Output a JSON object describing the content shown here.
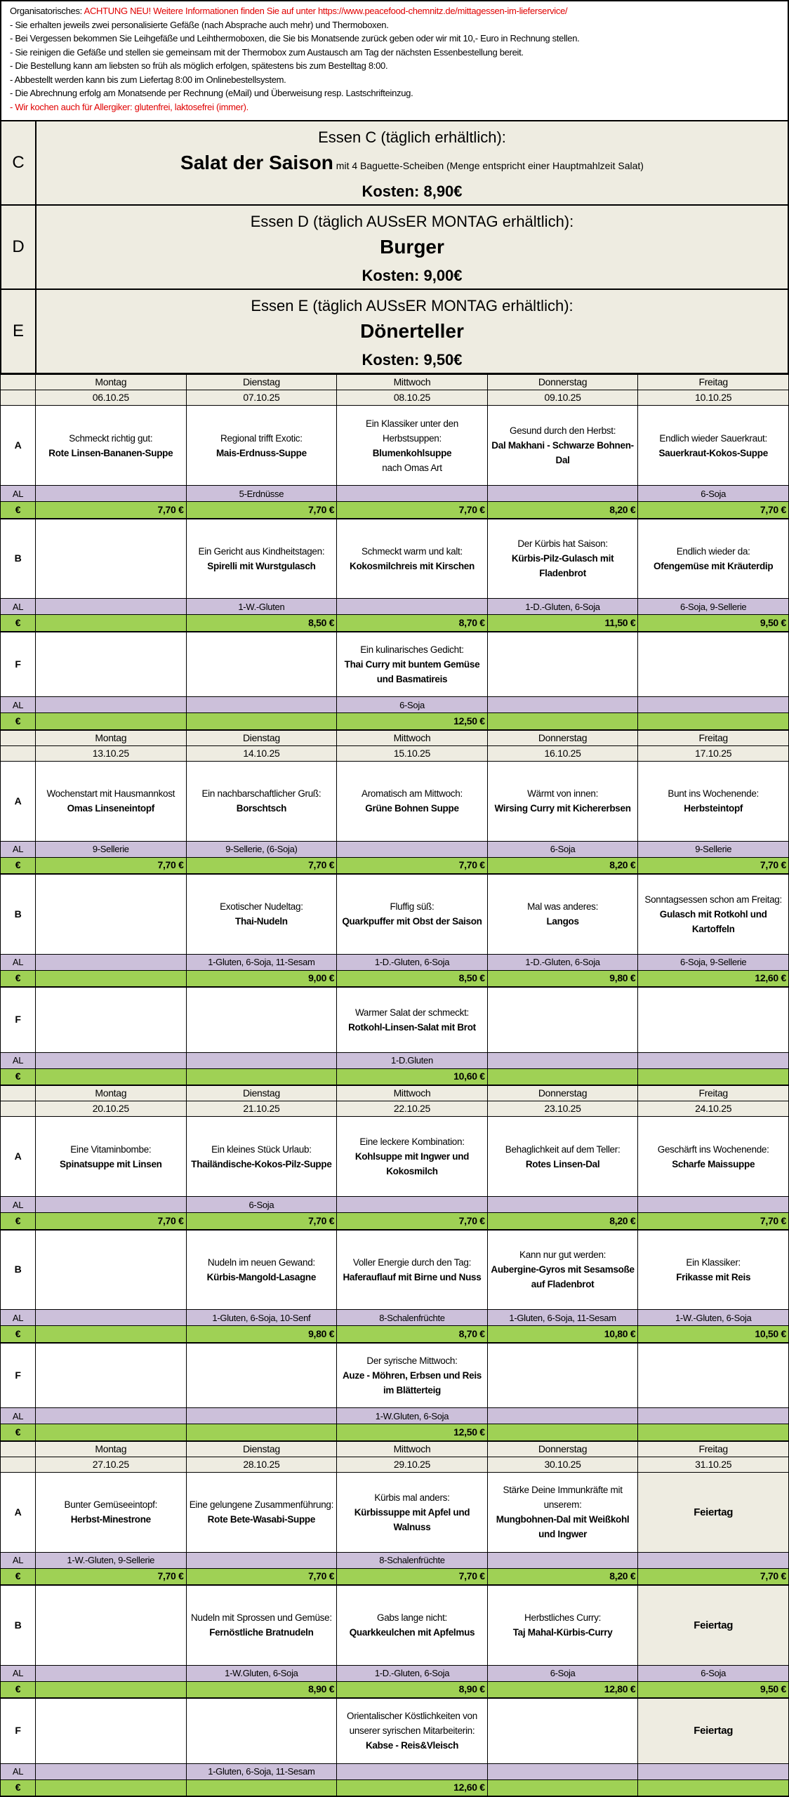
{
  "info": {
    "label": "Organisatorisches: ",
    "notice": "ACHTUNG NEU! Weitere Informationen finden Sie auf unter https://www.peacefood-chemnitz.de/mittagessen-im-lieferservice/",
    "lines": [
      "- Sie erhalten jeweils zwei personalisierte Gefäße (nach Absprache auch mehr) und Thermoboxen.",
      "- Bei Vergessen bekommen Sie Leihgefäße und Leihthermoboxen, die Sie bis Monatsende zurück geben oder  wir mit 10,- Euro in Rechnung stellen.",
      "- Sie reinigen die Gefäße und stellen sie gemeinsam mit der Thermobox zum Austausch am Tag der nächsten Essenbestellung bereit.",
      "- Die Bestellung kann am liebsten so früh als möglich erfolgen, spätestens bis zum Bestelltag 8:00.",
      "- Abbestellt werden kann bis zum Liefertag 8:00 im Onlinebestellsystem.",
      "- Die Abrechnung erfolg am Monatsende per Rechnung (eMail) und Überweisung resp. Lastschrifteinzug."
    ],
    "allergy": "- Wir kochen auch für Allergiker: glutenfrei, laktosefrei (immer)."
  },
  "blocks": [
    {
      "label": "C",
      "title": "Essen C (täglich erhältlich):",
      "dish": "Salat der Saison",
      "extra": " mit 4 Baguette-Scheiben (Menge entspricht einer Hauptmahlzeit Salat)",
      "price": "Kosten: 8,90€"
    },
    {
      "label": "D",
      "title": "Essen D (täglich AUSsER MONTAG erhältlich):",
      "dish": "Burger",
      "extra": "",
      "price": "Kosten: 9,00€"
    },
    {
      "label": "E",
      "title": "Essen E (täglich AUSsER MONTAG erhältlich):",
      "dish": "Dönerteller",
      "extra": "",
      "price": "Kosten: 9,50€"
    }
  ],
  "row_labels": {
    "al": "AL",
    "price": "€"
  },
  "colors": {
    "header_bg": "#eeece1",
    "allergen_bg": "#ccc0da",
    "price_bg": "#9fd155",
    "notice": "#e00000"
  },
  "weeks": [
    {
      "days": [
        {
          "name": "Montag",
          "date": "06.10.25"
        },
        {
          "name": "Dienstag",
          "date": "07.10.25"
        },
        {
          "name": "Mittwoch",
          "date": "08.10.25"
        },
        {
          "name": "Donnerstag",
          "date": "09.10.25"
        },
        {
          "name": "Freitag",
          "date": "10.10.25"
        }
      ],
      "menus": [
        {
          "label": "A",
          "cells": [
            {
              "intro": "Schmeckt richtig gut:",
              "dish": "Rote Linsen-Bananen-Suppe"
            },
            {
              "intro": "Regional trifft Exotic:",
              "dish": "Mais-Erdnuss-Suppe"
            },
            {
              "intro": "Ein Klassiker unter den Herbstsuppen:",
              "dish": "Blumenkohlsuppe",
              "note": "nach Omas Art"
            },
            {
              "intro": "Gesund durch den Herbst:",
              "dish": "Dal Makhani - Schwarze Bohnen-Dal"
            },
            {
              "intro": "Endlich wieder Sauerkraut:",
              "dish": "Sauerkraut-Kokos-Suppe"
            }
          ],
          "allergens": [
            "",
            "5-Erdnüsse",
            "",
            "",
            "6-Soja"
          ],
          "prices": [
            "7,70 €",
            "7,70 €",
            "7,70 €",
            "8,20 €",
            "7,70 €"
          ]
        },
        {
          "label": "B",
          "cells": [
            {},
            {
              "intro": "Ein Gericht aus Kindheitstagen:",
              "dish": "Spirelli mit Wurstgulasch"
            },
            {
              "intro": "Schmeckt warm und kalt:",
              "dish": "Kokosmilchreis mit Kirschen"
            },
            {
              "intro": "Der Kürbis hat Saison:",
              "dish": "Kürbis-Pilz-Gulasch mit Fladenbrot"
            },
            {
              "intro": "Endlich wieder da:",
              "dish": "Ofengemüse mit Kräuterdip"
            }
          ],
          "allergens": [
            "",
            "1-W.-Gluten",
            "",
            "1-D.-Gluten, 6-Soja",
            "6-Soja, 9-Sellerie"
          ],
          "prices": [
            "",
            "8,50 €",
            "8,70 €",
            "11,50 €",
            "9,50 €"
          ]
        },
        {
          "label": "F",
          "cells": [
            {},
            {},
            {
              "intro": "Ein kulinarisches Gedicht:",
              "dish": "Thai Curry mit buntem Gemüse und Basmatireis"
            },
            {},
            {}
          ],
          "allergens": [
            "",
            "",
            "6-Soja",
            "",
            ""
          ],
          "prices": [
            "",
            "",
            "12,50 €",
            "",
            ""
          ]
        }
      ]
    },
    {
      "days": [
        {
          "name": "Montag",
          "date": "13.10.25"
        },
        {
          "name": "Dienstag",
          "date": "14.10.25"
        },
        {
          "name": "Mittwoch",
          "date": "15.10.25"
        },
        {
          "name": "Donnerstag",
          "date": "16.10.25"
        },
        {
          "name": "Freitag",
          "date": "17.10.25"
        }
      ],
      "menus": [
        {
          "label": "A",
          "cells": [
            {
              "intro": "Wochenstart mit Hausmannkost",
              "dish": "Omas Linseneintopf"
            },
            {
              "intro": "Ein nachbarschaftlicher Gruß:",
              "dish": "Borschtsch"
            },
            {
              "intro": "Aromatisch am Mittwoch:",
              "dish": "Grüne Bohnen Suppe"
            },
            {
              "intro": "Wärmt von innen:",
              "dish": "Wirsing Curry mit Kichererbsen"
            },
            {
              "intro": "Bunt ins Wochenende:",
              "dish": "Herbsteintopf"
            }
          ],
          "allergens": [
            "9-Sellerie",
            "9-Sellerie, (6-Soja)",
            "",
            "6-Soja",
            "9-Sellerie"
          ],
          "prices": [
            "7,70 €",
            "7,70 €",
            "7,70 €",
            "8,20 €",
            "7,70 €"
          ]
        },
        {
          "label": "B",
          "cells": [
            {},
            {
              "intro": "Exotischer Nudeltag:",
              "dish": "Thai-Nudeln"
            },
            {
              "intro": "Fluffig süß:",
              "dish": "Quarkpuffer mit Obst der Saison"
            },
            {
              "intro": "Mal was anderes:",
              "dish": "Langos"
            },
            {
              "intro": "Sonntagsessen schon am Freitag:",
              "dish": "Gulasch mit Rotkohl und Kartoffeln"
            }
          ],
          "allergens": [
            "",
            "1-Gluten, 6-Soja, 11-Sesam",
            "1-D.-Gluten, 6-Soja",
            "1-D.-Gluten, 6-Soja",
            "6-Soja, 9-Sellerie"
          ],
          "prices": [
            "",
            "9,00 €",
            "8,50 €",
            "9,80 €",
            "12,60 €"
          ]
        },
        {
          "label": "F",
          "cells": [
            {},
            {},
            {
              "intro": "Warmer Salat der schmeckt:",
              "dish": "Rotkohl-Linsen-Salat mit Brot"
            },
            {},
            {}
          ],
          "allergens": [
            "",
            "",
            "1-D.Gluten",
            "",
            ""
          ],
          "prices": [
            "",
            "",
            "10,60 €",
            "",
            ""
          ]
        }
      ]
    },
    {
      "days": [
        {
          "name": "Montag",
          "date": "20.10.25"
        },
        {
          "name": "Dienstag",
          "date": "21.10.25"
        },
        {
          "name": "Mittwoch",
          "date": "22.10.25"
        },
        {
          "name": "Donnerstag",
          "date": "23.10.25"
        },
        {
          "name": "Freitag",
          "date": "24.10.25"
        }
      ],
      "menus": [
        {
          "label": "A",
          "cells": [
            {
              "intro": "Eine Vitaminbombe:",
              "dish": "Spinatsuppe mit Linsen"
            },
            {
              "intro": "Ein kleines Stück Urlaub:",
              "dish": "Thailändische-Kokos-Pilz-Suppe"
            },
            {
              "intro": "Eine leckere Kombination:",
              "dish": "Kohlsuppe mit Ingwer und Kokosmilch"
            },
            {
              "intro": "Behaglichkeit auf dem Teller:",
              "dish": "Rotes Linsen-Dal"
            },
            {
              "intro": "Geschärft ins Wochenende:",
              "dish": "Scharfe Maissuppe"
            }
          ],
          "allergens": [
            "",
            "6-Soja",
            "",
            "",
            ""
          ],
          "prices": [
            "7,70 €",
            "7,70 €",
            "7,70 €",
            "8,20 €",
            "7,70 €"
          ]
        },
        {
          "label": "B",
          "cells": [
            {},
            {
              "intro": "Nudeln im neuen Gewand:",
              "dish": "Kürbis-Mangold-Lasagne"
            },
            {
              "intro": "Voller Energie durch den Tag:",
              "dish": "Haferauflauf mit Birne und Nuss"
            },
            {
              "intro": "Kann nur gut werden:",
              "dish": "Aubergine-Gyros mit Sesamsoße auf Fladenbrot"
            },
            {
              "intro": "Ein Klassiker:",
              "dish": "Frikasse mit Reis"
            }
          ],
          "allergens": [
            "",
            "1-Gluten, 6-Soja, 10-Senf",
            "8-Schalenfrüchte",
            "1-Gluten, 6-Soja, 11-Sesam",
            "1-W.-Gluten, 6-Soja"
          ],
          "prices": [
            "",
            "9,80 €",
            "8,70 €",
            "10,80 €",
            "10,50 €"
          ]
        },
        {
          "label": "F",
          "cells": [
            {},
            {},
            {
              "intro": "Der syrische Mittwoch:",
              "dish": "Auze - Möhren, Erbsen und Reis im Blätterteig"
            },
            {},
            {}
          ],
          "allergens": [
            "",
            "",
            "1-W.Gluten, 6-Soja",
            "",
            ""
          ],
          "prices": [
            "",
            "",
            "12,50 €",
            "",
            ""
          ]
        }
      ]
    },
    {
      "days": [
        {
          "name": "Montag",
          "date": "27.10.25"
        },
        {
          "name": "Dienstag",
          "date": "28.10.25"
        },
        {
          "name": "Mittwoch",
          "date": "29.10.25"
        },
        {
          "name": "Donnerstag",
          "date": "30.10.25"
        },
        {
          "name": "Freitag",
          "date": "31.10.25"
        }
      ],
      "menus": [
        {
          "label": "A",
          "cells": [
            {
              "intro": "Bunter Gemüseeintopf:",
              "dish": "Herbst-Minestrone"
            },
            {
              "intro": "Eine gelungene Zusammenführung:",
              "dish": "Rote Bete-Wasabi-Suppe"
            },
            {
              "intro": "Kürbis mal anders:",
              "dish": "Kürbissuppe mit Apfel und Walnuss"
            },
            {
              "intro": "Stärke Deine Immunkräfte mit unserem:",
              "dish": "Mungbohnen-Dal mit Weißkohl und Ingwer"
            },
            {
              "holiday": "Feiertag"
            }
          ],
          "allergens": [
            "1-W.-Gluten, 9-Sellerie",
            "",
            "8-Schalenfrüchte",
            "",
            ""
          ],
          "prices": [
            "7,70 €",
            "7,70 €",
            "7,70 €",
            "8,20 €",
            "7,70 €"
          ]
        },
        {
          "label": "B",
          "cells": [
            {},
            {
              "intro": "Nudeln mit Sprossen und Gemüse:",
              "dish": "Fernöstliche Bratnudeln"
            },
            {
              "intro": "Gabs lange nicht:",
              "dish": "Quarkkeulchen mit Apfelmus"
            },
            {
              "intro": "Herbstliches Curry:",
              "dish": "Taj Mahal-Kürbis-Curry"
            },
            {
              "holiday": "Feiertag"
            }
          ],
          "allergens": [
            "",
            "1-W.Gluten, 6-Soja",
            "1-D.-Gluten, 6-Soja",
            "6-Soja",
            "6-Soja"
          ],
          "prices": [
            "",
            "8,90 €",
            "8,90 €",
            "12,80 €",
            "9,50 €"
          ]
        },
        {
          "label": "F",
          "cells": [
            {},
            {},
            {
              "intro": "Orientalischer Köstlichkeiten von unserer syrischen Mitarbeiterin:",
              "dish": "Kabse - Reis&Vleisch"
            },
            {},
            {
              "holiday": "Feiertag"
            }
          ],
          "allergens": [
            "",
            "1-Gluten, 6-Soja, 11-Sesam",
            "",
            "",
            ""
          ],
          "prices": [
            "",
            "",
            "12,60 €",
            "",
            ""
          ]
        }
      ]
    }
  ]
}
